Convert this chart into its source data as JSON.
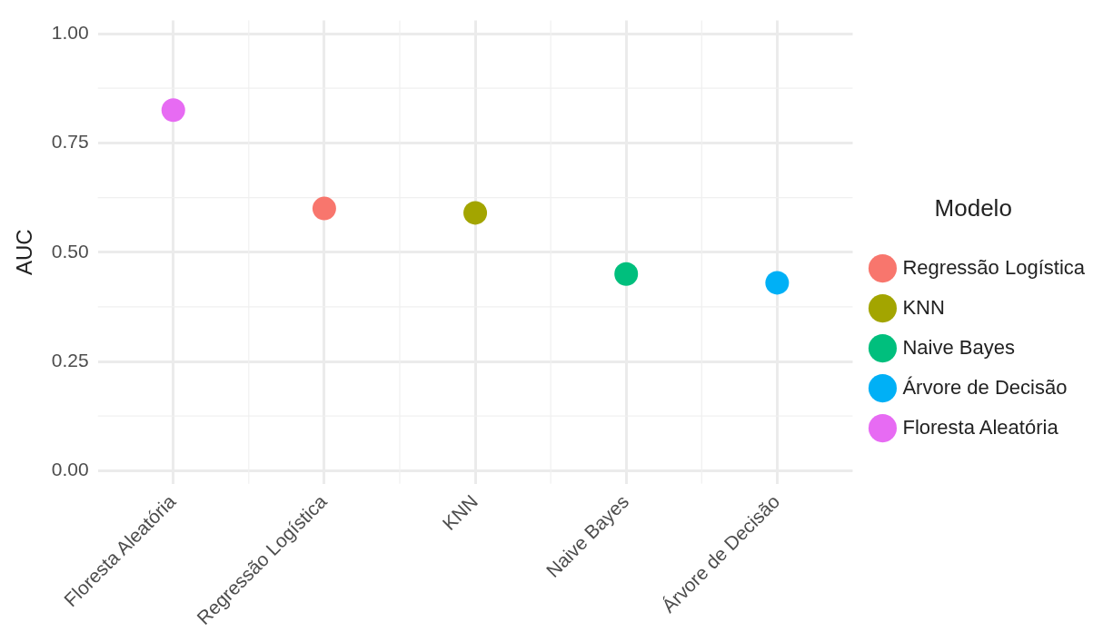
{
  "chart_data": {
    "type": "scatter",
    "ylabel": "AUC",
    "legend_title": "Modelo",
    "legend": "right",
    "grid": true,
    "marker": "circle",
    "categories": [
      "Floresta Aleatória",
      "Regressão Logística",
      "KNN",
      "Naive Bayes",
      "Árvore de Decisão"
    ],
    "ylim": [
      -0.03,
      1.03
    ],
    "yticks": [
      {
        "value": 0,
        "label": "0.00"
      },
      {
        "value": 0.25,
        "label": "0.25"
      },
      {
        "value": 0.5,
        "label": "0.50"
      },
      {
        "value": 0.75,
        "label": "0.75"
      },
      {
        "value": 1,
        "label": "1.00"
      }
    ],
    "series": [
      {
        "name": "Regressão Logística",
        "color": "#f8766d",
        "x": [
          "Regressão Logística"
        ],
        "values": [
          0.6
        ]
      },
      {
        "name": "KNN",
        "color": "#a3a500",
        "x": [
          "KNN"
        ],
        "values": [
          0.59
        ]
      },
      {
        "name": "Naive Bayes",
        "color": "#00bf7d",
        "x": [
          "Naive Bayes"
        ],
        "values": [
          0.45
        ]
      },
      {
        "name": "Árvore de Decisão",
        "color": "#00b0f6",
        "x": [
          "Árvore de Decisão"
        ],
        "values": [
          0.43
        ]
      },
      {
        "name": "Floresta Aleatória",
        "color": "#e76bf3",
        "x": [
          "Floresta Aleatória"
        ],
        "values": [
          0.825
        ]
      }
    ]
  }
}
